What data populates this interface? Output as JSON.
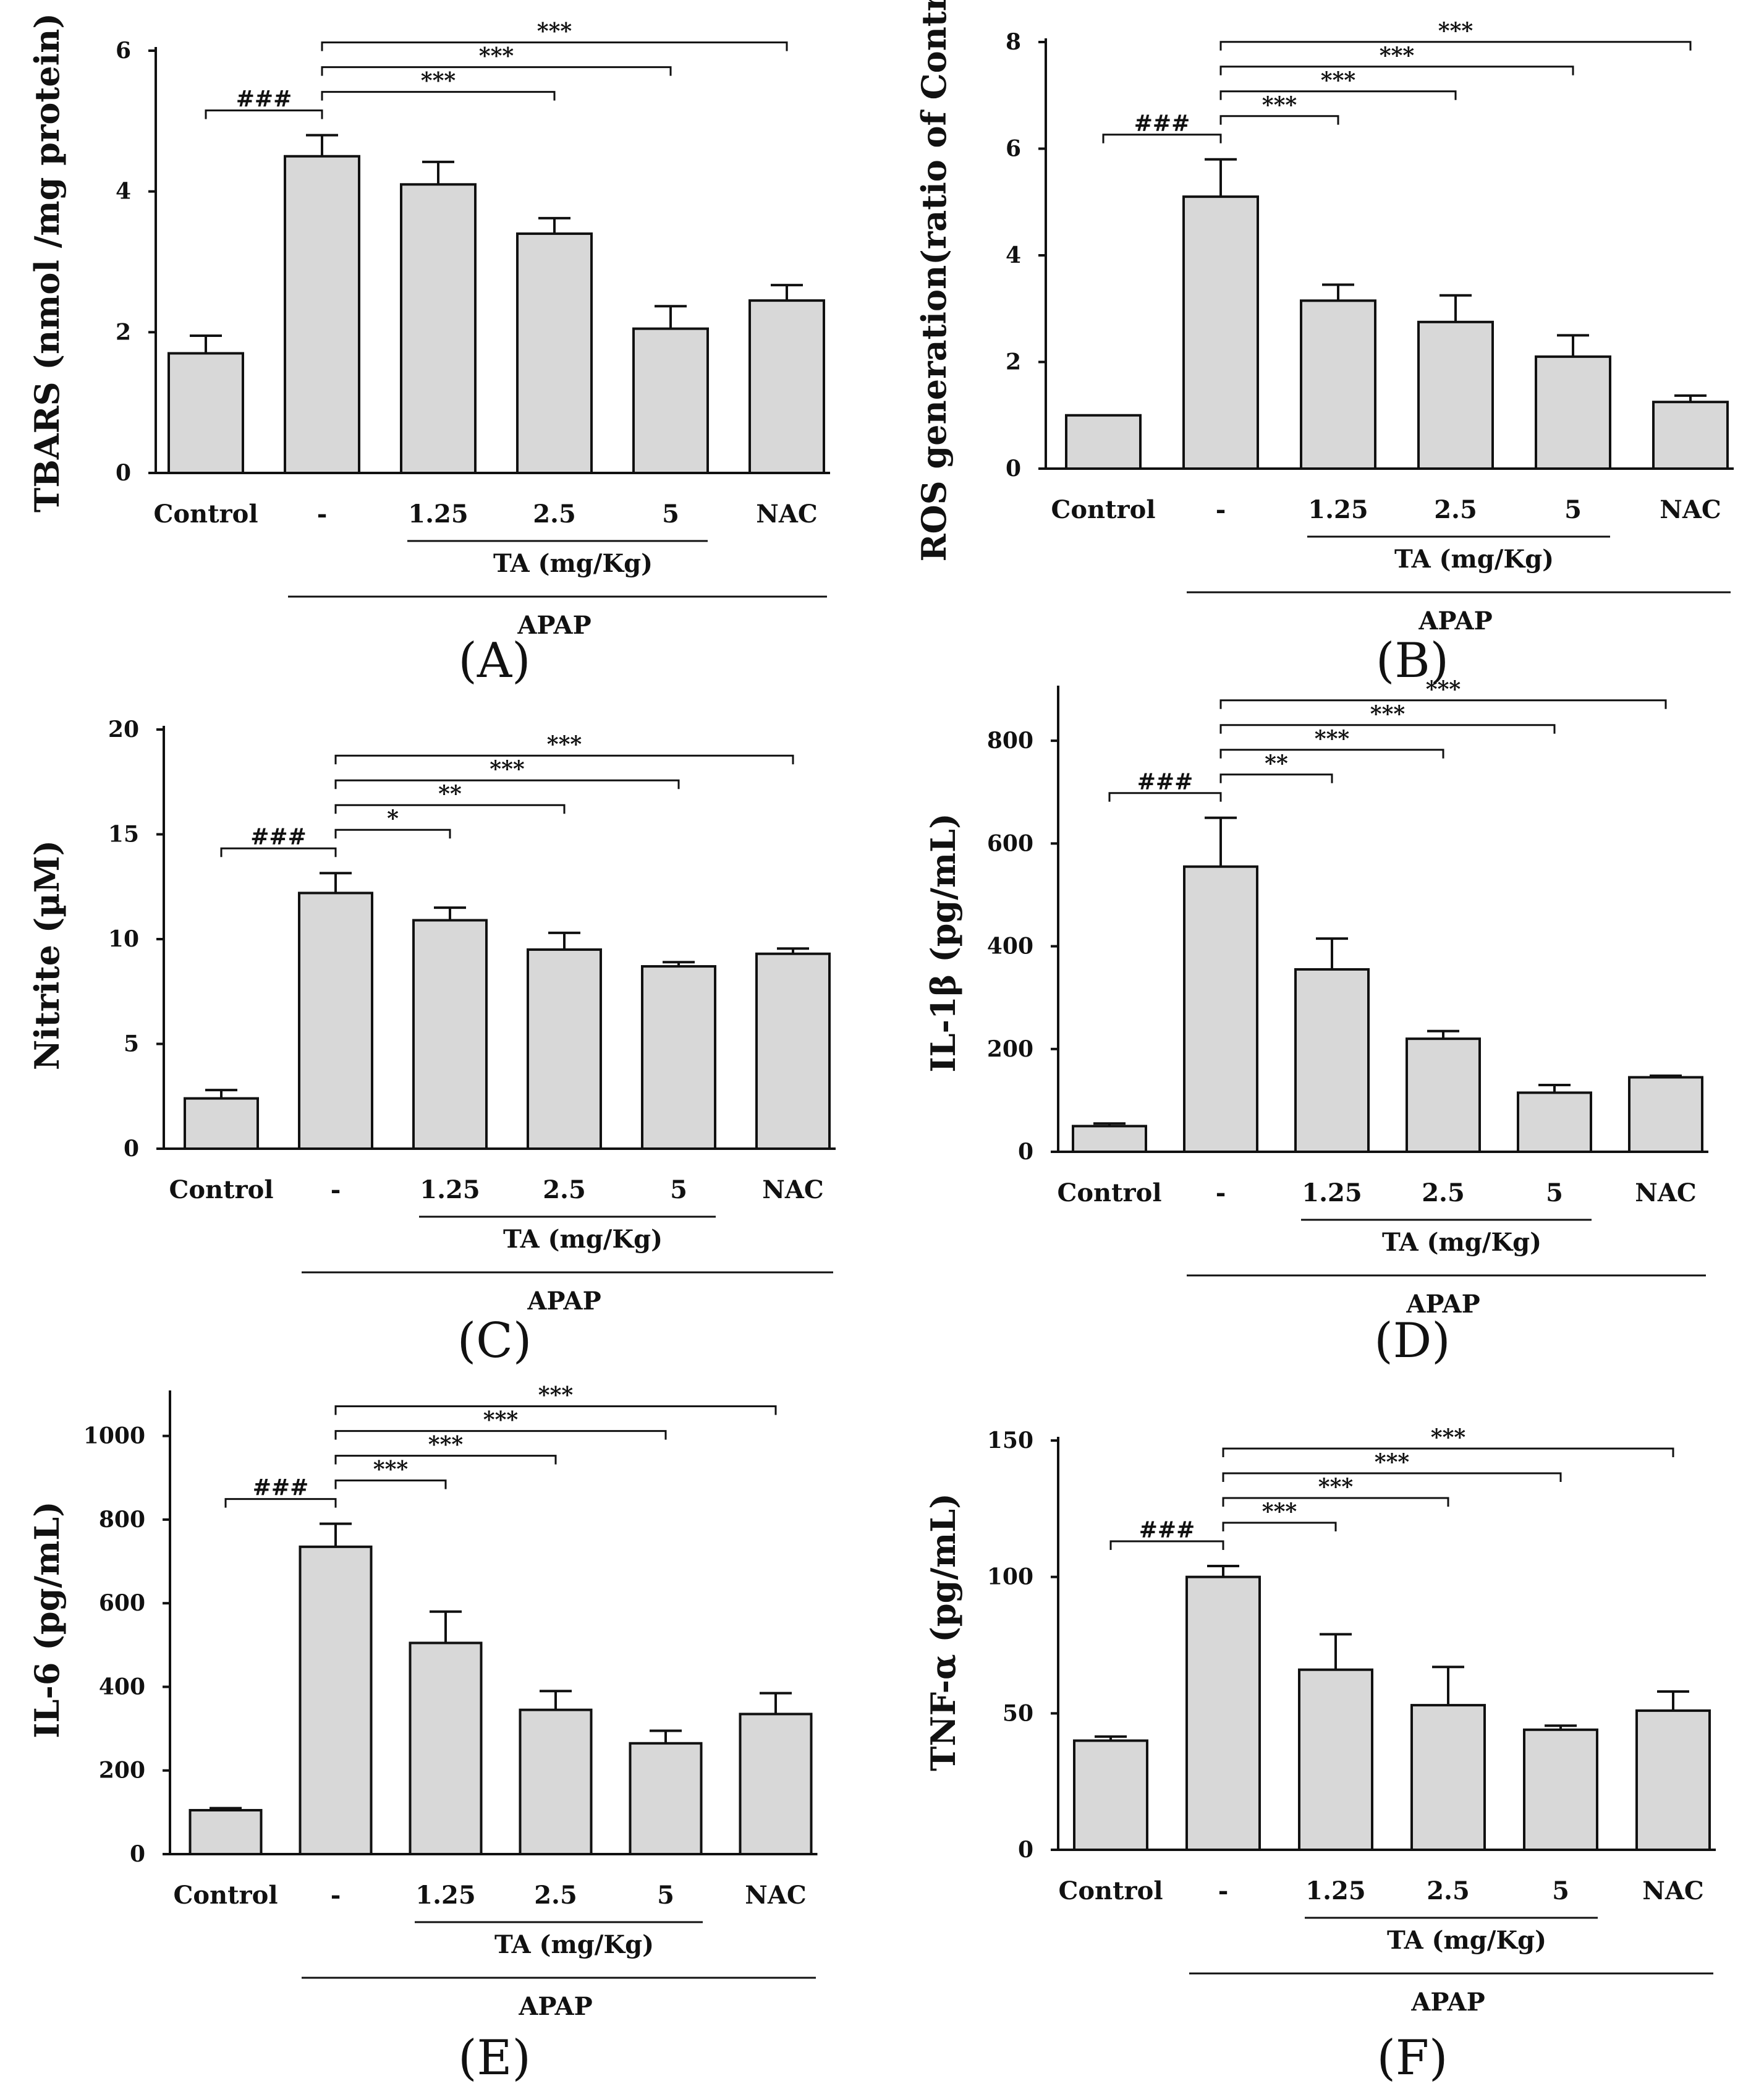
{
  "chart_data": [
    {
      "panel": "(A)",
      "type": "bar",
      "ylabel": "TBARS (nmol /mg protein)",
      "ylim": [
        0,
        6
      ],
      "yticks": [
        "0",
        "2",
        "4",
        "6"
      ],
      "categories": [
        "Control",
        "-",
        "1.25",
        "2.5",
        "5",
        "NAC"
      ],
      "values": [
        1.7,
        4.5,
        4.1,
        3.4,
        2.05,
        2.45
      ],
      "errors": [
        0.25,
        0.3,
        0.32,
        0.22,
        0.32,
        0.22
      ],
      "group_ta": "TA (mg/Kg)",
      "group_apap": "APAP",
      "significance": [
        {
          "from": 0,
          "to": 1,
          "label": "###"
        },
        {
          "from": 1,
          "to": 3,
          "label": "***"
        },
        {
          "from": 1,
          "to": 4,
          "label": "***"
        },
        {
          "from": 1,
          "to": 5,
          "label": "***"
        }
      ]
    },
    {
      "panel": "(B)",
      "type": "bar",
      "ylabel": "ROS generation(ratio of Control)",
      "ylim": [
        0,
        8
      ],
      "yticks": [
        "0",
        "2",
        "4",
        "6",
        "8"
      ],
      "categories": [
        "Control",
        "-",
        "1.25",
        "2.5",
        "5",
        "NAC"
      ],
      "values": [
        1.0,
        5.1,
        3.15,
        2.75,
        2.1,
        1.25
      ],
      "errors": [
        0.0,
        0.7,
        0.3,
        0.5,
        0.4,
        0.12
      ],
      "group_ta": "TA (mg/Kg)",
      "group_apap": "APAP",
      "significance": [
        {
          "from": 0,
          "to": 1,
          "label": "###"
        },
        {
          "from": 1,
          "to": 2,
          "label": "***"
        },
        {
          "from": 1,
          "to": 3,
          "label": "***"
        },
        {
          "from": 1,
          "to": 4,
          "label": "***"
        },
        {
          "from": 1,
          "to": 5,
          "label": "***"
        }
      ]
    },
    {
      "panel": "(C)",
      "type": "bar",
      "ylabel": "Nitrite (µM)",
      "ylim": [
        0,
        20
      ],
      "yticks": [
        "0",
        "5",
        "10",
        "15",
        "20"
      ],
      "categories": [
        "Control",
        "-",
        "1.25",
        "2.5",
        "5",
        "NAC"
      ],
      "values": [
        2.4,
        12.2,
        10.9,
        9.5,
        8.7,
        9.3
      ],
      "errors": [
        0.4,
        0.95,
        0.6,
        0.8,
        0.2,
        0.25
      ],
      "group_ta": "TA (mg/Kg)",
      "group_apap": "APAP",
      "significance": [
        {
          "from": 0,
          "to": 1,
          "label": "###"
        },
        {
          "from": 1,
          "to": 2,
          "label": "*"
        },
        {
          "from": 1,
          "to": 3,
          "label": "**"
        },
        {
          "from": 1,
          "to": 4,
          "label": "***"
        },
        {
          "from": 1,
          "to": 5,
          "label": "***"
        }
      ]
    },
    {
      "panel": "(D)",
      "type": "bar",
      "ylabel": "IL-1β (pg/mL)",
      "ylim": [
        0,
        900
      ],
      "yticks": [
        "0",
        "200",
        "400",
        "600",
        "800"
      ],
      "categories": [
        "Control",
        "-",
        "1.25",
        "2.5",
        "5",
        "NAC"
      ],
      "values": [
        50,
        555,
        355,
        220,
        115,
        145
      ],
      "errors": [
        5,
        95,
        60,
        15,
        15,
        3
      ],
      "group_ta": "TA (mg/Kg)",
      "group_apap": "APAP",
      "significance": [
        {
          "from": 0,
          "to": 1,
          "label": "###"
        },
        {
          "from": 1,
          "to": 2,
          "label": "**"
        },
        {
          "from": 1,
          "to": 3,
          "label": "***"
        },
        {
          "from": 1,
          "to": 4,
          "label": "***"
        },
        {
          "from": 1,
          "to": 5,
          "label": "***"
        }
      ]
    },
    {
      "panel": "(E)",
      "type": "bar",
      "ylabel": "IL-6 (pg/mL)",
      "ylim": [
        0,
        1100
      ],
      "yticks": [
        "0",
        "200",
        "400",
        "600",
        "800",
        "1000"
      ],
      "categories": [
        "Control",
        "-",
        "1.25",
        "2.5",
        "5",
        "NAC"
      ],
      "values": [
        105,
        735,
        505,
        345,
        265,
        335
      ],
      "errors": [
        5,
        55,
        75,
        45,
        30,
        50
      ],
      "group_ta": "TA (mg/Kg)",
      "group_apap": "APAP",
      "significance": [
        {
          "from": 0,
          "to": 1,
          "label": "###"
        },
        {
          "from": 1,
          "to": 2,
          "label": "***"
        },
        {
          "from": 1,
          "to": 3,
          "label": "***"
        },
        {
          "from": 1,
          "to": 4,
          "label": "***"
        },
        {
          "from": 1,
          "to": 5,
          "label": "***"
        }
      ]
    },
    {
      "panel": "(F)",
      "type": "bar",
      "ylabel": "TNF-α (pg/mL)",
      "ylim": [
        0,
        150
      ],
      "yticks": [
        "0",
        "50",
        "100",
        "150"
      ],
      "categories": [
        "Control",
        "-",
        "1.25",
        "2.5",
        "5",
        "NAC"
      ],
      "values": [
        40,
        100,
        66,
        53,
        44,
        51
      ],
      "errors": [
        1.5,
        4,
        13,
        14,
        1.5,
        7
      ],
      "group_ta": "TA (mg/Kg)",
      "group_apap": "APAP",
      "significance": [
        {
          "from": 0,
          "to": 1,
          "label": "###"
        },
        {
          "from": 1,
          "to": 2,
          "label": "***"
        },
        {
          "from": 1,
          "to": 3,
          "label": "***"
        },
        {
          "from": 1,
          "to": 4,
          "label": "***"
        },
        {
          "from": 1,
          "to": 5,
          "label": "***"
        }
      ]
    }
  ]
}
